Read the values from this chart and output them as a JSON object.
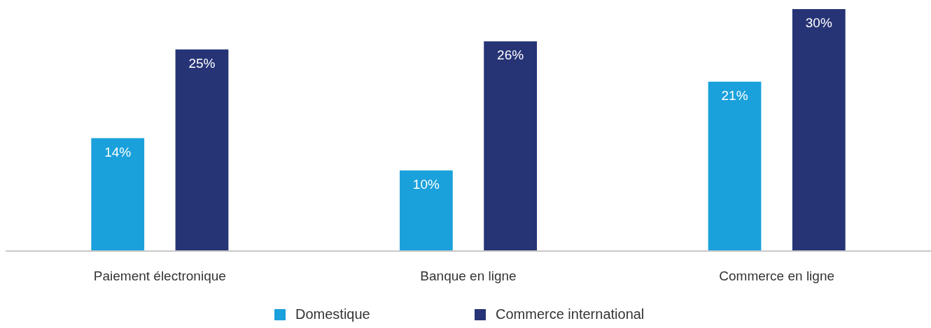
{
  "chart_data": {
    "type": "bar",
    "categories": [
      "Paiement électronique",
      "Banque en ligne",
      "Commerce en ligne"
    ],
    "series": [
      {
        "name": "Domestique",
        "color": "#1aa1dc",
        "values": [
          14,
          10,
          21
        ],
        "value_labels": [
          "14%",
          "10%",
          "21%"
        ]
      },
      {
        "name": "Commerce international",
        "color": "#263476",
        "values": [
          25,
          26,
          30
        ],
        "value_labels": [
          "25%",
          "26%",
          "30%"
        ]
      }
    ],
    "legend": "bottom"
  }
}
